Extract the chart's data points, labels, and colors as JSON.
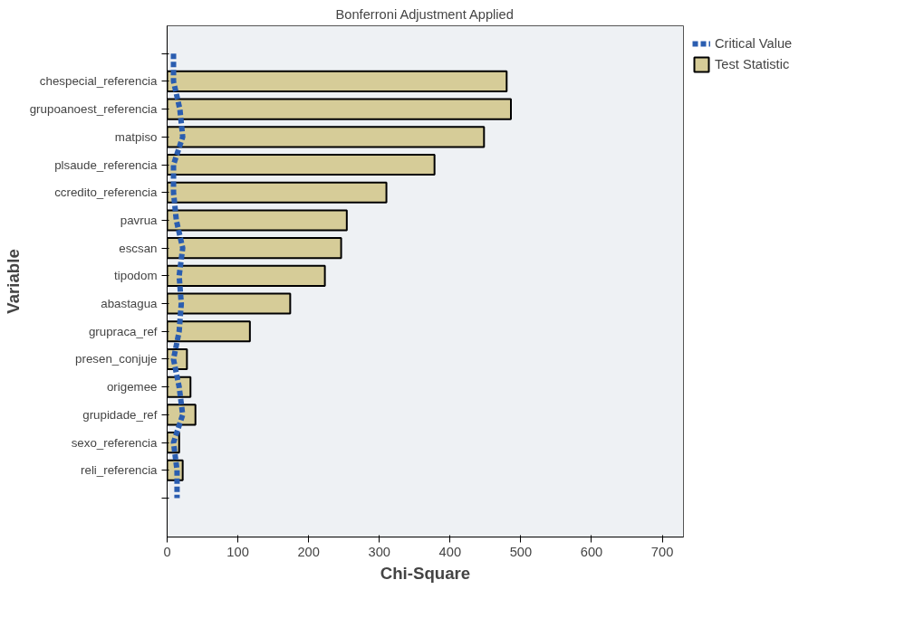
{
  "chart_data": {
    "type": "bar",
    "orientation": "horizontal",
    "title": "Bonferroni Adjustment Applied",
    "xlabel": "Chi-Square",
    "ylabel": "Variable",
    "categories": [
      null,
      "chespecial_referencia",
      "grupoanoest_referencia",
      "matpiso",
      "plsaude_referencia",
      "ccredito_referencia",
      "pavrua",
      "escsan",
      "tipodom",
      "abastagua",
      "grupraca_ref",
      "presen_conjuje",
      "origemee",
      "grupidade_ref",
      "sexo_referencia",
      "reli_referencia",
      null
    ],
    "series": [
      {
        "name": "Critical Value",
        "type": "line",
        "color": "#2a5db0",
        "line_style": "dashed",
        "values": [
          9,
          9,
          18,
          22,
          9,
          9,
          13,
          22,
          17,
          20,
          17,
          9,
          17,
          22,
          9,
          14,
          14
        ]
      },
      {
        "name": "Test Statistic",
        "color": "#d6cc98",
        "values": [
          null,
          480,
          486,
          448,
          378,
          310,
          254,
          246,
          223,
          174,
          117,
          28,
          33,
          40,
          17,
          22,
          null
        ]
      }
    ],
    "xlim": [
      0,
      730
    ],
    "xticks": [
      0,
      100,
      200,
      300,
      400,
      500,
      600,
      700
    ],
    "grid": false,
    "legend": "top right"
  }
}
